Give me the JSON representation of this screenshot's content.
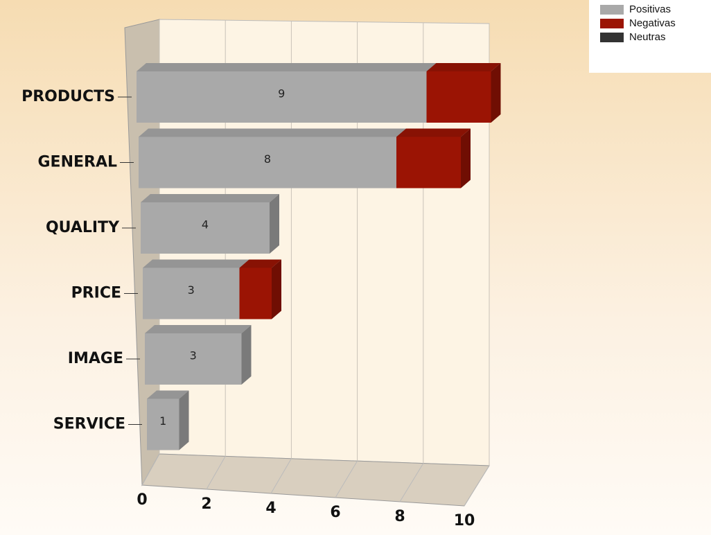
{
  "chart_data": {
    "type": "bar3d_stacked_horizontal",
    "categories": [
      "PRODUCTS",
      "GENERAL",
      "QUALITY",
      "PRICE",
      "IMAGE",
      "SERVICE"
    ],
    "series": [
      {
        "name": "Positivas",
        "color": "#a9a9a9",
        "values": [
          9,
          8,
          4,
          3,
          3,
          1
        ],
        "data_labels": true
      },
      {
        "name": "Negativas",
        "color": "#9b1404",
        "values": [
          2,
          2,
          0,
          1,
          0,
          0
        ]
      },
      {
        "name": "Neutras",
        "color": "#333333",
        "values": [
          0,
          0,
          0,
          0,
          0,
          0
        ]
      }
    ],
    "xlim": [
      0,
      10
    ],
    "xticks": [
      0,
      2,
      4,
      6,
      8,
      10
    ],
    "grid": true,
    "legend": "top-right"
  }
}
